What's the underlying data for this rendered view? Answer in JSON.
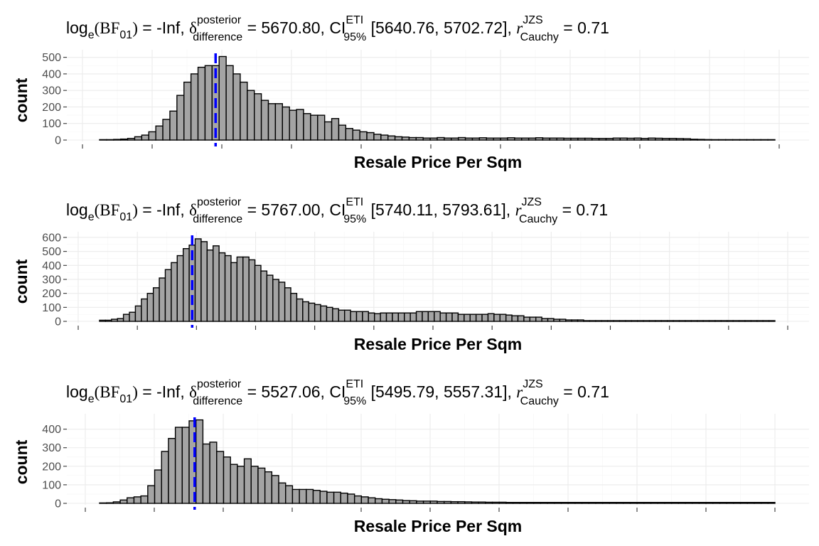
{
  "chart_data": [
    {
      "type": "bar",
      "title": {
        "log": "log",
        "log_sub": "e",
        "bf": "(BF",
        "bf_sub": "01",
        "bf_close": ")",
        "eq1": " = -Inf, ",
        "delta": "δ",
        "delta_sup": "posterior",
        "delta_sub": "difference",
        "eq2": " = 5670.80, CI",
        "ci_sup": "ETI",
        "ci_sub": "95%",
        "interval": " [5640.76, 5702.72], ",
        "r": "r",
        "r_sup": "JZS",
        "r_sub": "Cauchy",
        "eq3": " = 0.71"
      },
      "xlabel": "Resale Price Per Sqm",
      "ylabel": "count",
      "yticks": [
        "0",
        "100",
        "200",
        "300",
        "400",
        "500"
      ],
      "ylim": [
        0,
        520
      ],
      "values": [
        2,
        2,
        4,
        6,
        10,
        20,
        30,
        50,
        85,
        125,
        175,
        270,
        350,
        400,
        440,
        450,
        450,
        505,
        450,
        400,
        350,
        300,
        280,
        240,
        220,
        220,
        200,
        180,
        185,
        160,
        150,
        150,
        110,
        130,
        90,
        70,
        60,
        50,
        45,
        35,
        30,
        25,
        20,
        18,
        15,
        15,
        12,
        12,
        15,
        12,
        12,
        15,
        12,
        12,
        14,
        12,
        12,
        12,
        14,
        12,
        12,
        12,
        14,
        12,
        12,
        12,
        11,
        11,
        11,
        11,
        10,
        10,
        10,
        12,
        12,
        11,
        12,
        10,
        12,
        11,
        10,
        10,
        9,
        8,
        5,
        4,
        3,
        2,
        2,
        1,
        1,
        1,
        1,
        1,
        1,
        1
      ],
      "vline_bin": 16.5,
      "xtick_count": 11
    },
    {
      "type": "bar",
      "title": {
        "log": "log",
        "log_sub": "e",
        "bf": "(BF",
        "bf_sub": "01",
        "bf_close": ")",
        "eq1": " = -Inf, ",
        "delta": "δ",
        "delta_sup": "posterior",
        "delta_sub": "difference",
        "eq2": " = 5767.00, CI",
        "ci_sup": "ETI",
        "ci_sub": "95%",
        "interval": " [5740.11, 5793.61], ",
        "r": "r",
        "r_sup": "JZS",
        "r_sub": "Cauchy",
        "eq3": " = 0.71"
      },
      "xlabel": "Resale Price Per Sqm",
      "ylabel": "count",
      "yticks": [
        "0",
        "100",
        "200",
        "300",
        "400",
        "500",
        "600"
      ],
      "ylim": [
        0,
        610
      ],
      "values": [
        8,
        8,
        15,
        20,
        50,
        65,
        110,
        160,
        200,
        240,
        310,
        370,
        420,
        470,
        520,
        545,
        590,
        570,
        510,
        540,
        490,
        470,
        420,
        460,
        460,
        440,
        400,
        360,
        330,
        300,
        280,
        240,
        200,
        160,
        140,
        130,
        120,
        110,
        100,
        90,
        80,
        80,
        70,
        70,
        70,
        60,
        55,
        60,
        60,
        60,
        60,
        60,
        60,
        70,
        70,
        70,
        70,
        60,
        60,
        60,
        50,
        50,
        50,
        50,
        50,
        55,
        50,
        50,
        45,
        40,
        40,
        30,
        30,
        30,
        20,
        20,
        15,
        15,
        10,
        10,
        10,
        5,
        5,
        5,
        5,
        5,
        5,
        5,
        5,
        5,
        5,
        5,
        5,
        5,
        5,
        5,
        5,
        5,
        5,
        5,
        5,
        5,
        5,
        5,
        5,
        5,
        5,
        5,
        5,
        5,
        5,
        5,
        5
      ],
      "vline_bin": 15.5,
      "xtick_count": 13
    },
    {
      "type": "bar",
      "title": {
        "log": "log",
        "log_sub": "e",
        "bf": "(BF",
        "bf_sub": "01",
        "bf_close": ")",
        "eq1": " = -Inf, ",
        "delta": "δ",
        "delta_sup": "posterior",
        "delta_sub": "difference",
        "eq2": " = 5527.06, CI",
        "ci_sup": "ETI",
        "ci_sub": "95%",
        "interval": " [5495.79, 5557.31], ",
        "r": "r",
        "r_sup": "JZS",
        "r_sub": "Cauchy",
        "eq3": " = 0.71"
      },
      "xlabel": "Resale Price Per Sqm",
      "ylabel": "count",
      "yticks": [
        "0",
        "100",
        "200",
        "300",
        "400"
      ],
      "ylim": [
        0,
        460
      ],
      "values": [
        2,
        3,
        8,
        18,
        30,
        35,
        40,
        95,
        180,
        280,
        350,
        410,
        410,
        445,
        450,
        320,
        330,
        280,
        250,
        210,
        200,
        240,
        200,
        190,
        170,
        150,
        110,
        95,
        75,
        75,
        75,
        70,
        65,
        60,
        60,
        55,
        50,
        40,
        35,
        30,
        25,
        22,
        20,
        18,
        15,
        14,
        12,
        12,
        12,
        10,
        10,
        9,
        9,
        8,
        7,
        7,
        6,
        6,
        6,
        5,
        5,
        5,
        5,
        5,
        5,
        5,
        5,
        5,
        5,
        5,
        5,
        5,
        5,
        5,
        5,
        5,
        5,
        5,
        5,
        5,
        5,
        5,
        5,
        5,
        5,
        5,
        5,
        5,
        5,
        5,
        5,
        5,
        5,
        5,
        5,
        5,
        5,
        5
      ],
      "vline_bin": 13.8,
      "xtick_count": 11
    }
  ]
}
